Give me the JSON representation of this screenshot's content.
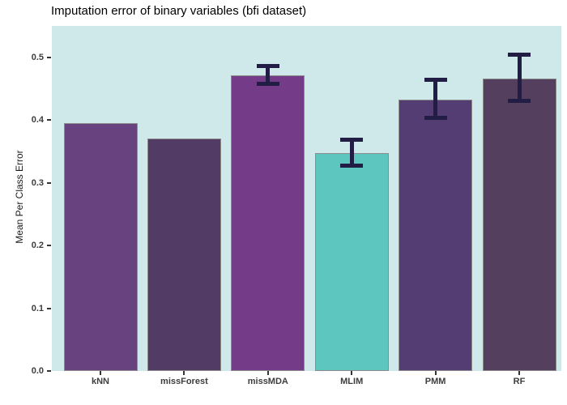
{
  "chart_data": {
    "type": "bar",
    "title": "Imputation error of binary variables (bfi dataset)",
    "xlabel": "",
    "ylabel": "Mean Per Class Error",
    "categories": [
      "kNN",
      "missForest",
      "missMDA",
      "MLIM",
      "PMM",
      "RF"
    ],
    "values": [
      0.395,
      0.37,
      0.471,
      0.347,
      0.433,
      0.466
    ],
    "error_bars": [
      null,
      null,
      {
        "low": 0.458,
        "high": 0.486
      },
      {
        "low": 0.327,
        "high": 0.368
      },
      {
        "low": 0.404,
        "high": 0.464
      },
      {
        "low": 0.431,
        "high": 0.504
      }
    ],
    "y_ticks": [
      0.0,
      0.1,
      0.2,
      0.3,
      0.4,
      0.5
    ],
    "y_tick_labels": [
      "0.0",
      "0.1",
      "0.2",
      "0.3",
      "0.4",
      "0.5"
    ],
    "ylim": [
      0,
      0.55
    ],
    "grid": false,
    "legend": "none",
    "colors": {
      "bars": [
        "#68417f",
        "#523c66",
        "#733b88",
        "#5cc6bf",
        "#533d72",
        "#543f5f"
      ],
      "bar_border": "#8c8c8c",
      "error_bar": "#221d44",
      "panel_background": "#cfe8e9",
      "outer_background": "#ffffff",
      "axis_text": "#3d3d3d",
      "tick_mark": "#333333",
      "title_text": "#000000"
    }
  }
}
